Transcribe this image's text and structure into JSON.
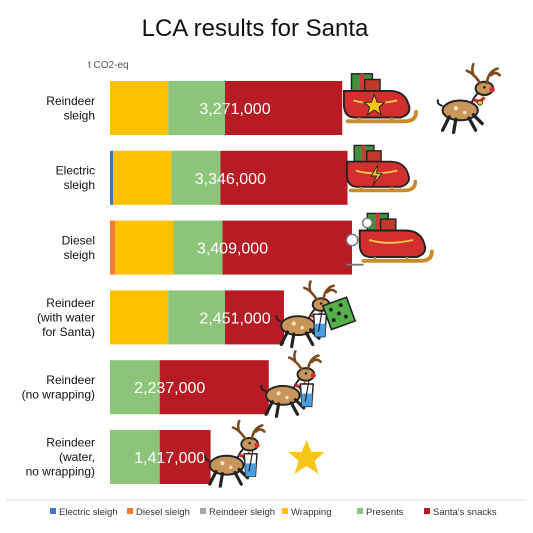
{
  "chart_data": {
    "type": "bar",
    "orientation": "horizontal",
    "stacked": true,
    "title": "LCA results for Santa",
    "unit_label": "t CO2-eq",
    "categories": [
      "Reindeer\nsleigh",
      "Electric\nsleigh",
      "Diesel\nsleigh",
      "Reindeer\n(with water\nfor Santa)",
      "Reindeer\n(no wrapping)",
      "Reindeer\n(water,\nno wrapping)"
    ],
    "series": [
      {
        "name": "Electric sleigh",
        "color": "#4472c4",
        "values": [
          0,
          45000,
          0,
          0,
          0,
          0
        ]
      },
      {
        "name": "Diesel sleigh",
        "color": "#ed7d31",
        "values": [
          0,
          0,
          75000,
          0,
          0,
          0
        ]
      },
      {
        "name": "Reindeer sleigh",
        "color": "#a5a5a5",
        "values": [
          0,
          0,
          0,
          0,
          0,
          0
        ]
      },
      {
        "name": "Wrapping",
        "color": "#ffc000",
        "values": [
          820000,
          820000,
          820000,
          820000,
          0,
          0
        ]
      },
      {
        "name": "Presents",
        "color": "#8cc47a",
        "values": [
          800000,
          690000,
          690000,
          800000,
          700000,
          700000
        ]
      },
      {
        "name": "Santa's snacks",
        "color": "#b71c24",
        "values": [
          1651000,
          1791000,
          1824000,
          831000,
          1537000,
          717000
        ]
      }
    ],
    "totals": [
      "3,271,000",
      "3,346,000",
      "3,409,000",
      "2,451,000",
      "2,237,000",
      "1,417,000"
    ],
    "xlim": [
      0,
      3409000
    ],
    "legend_position": "bottom",
    "grid": false
  }
}
